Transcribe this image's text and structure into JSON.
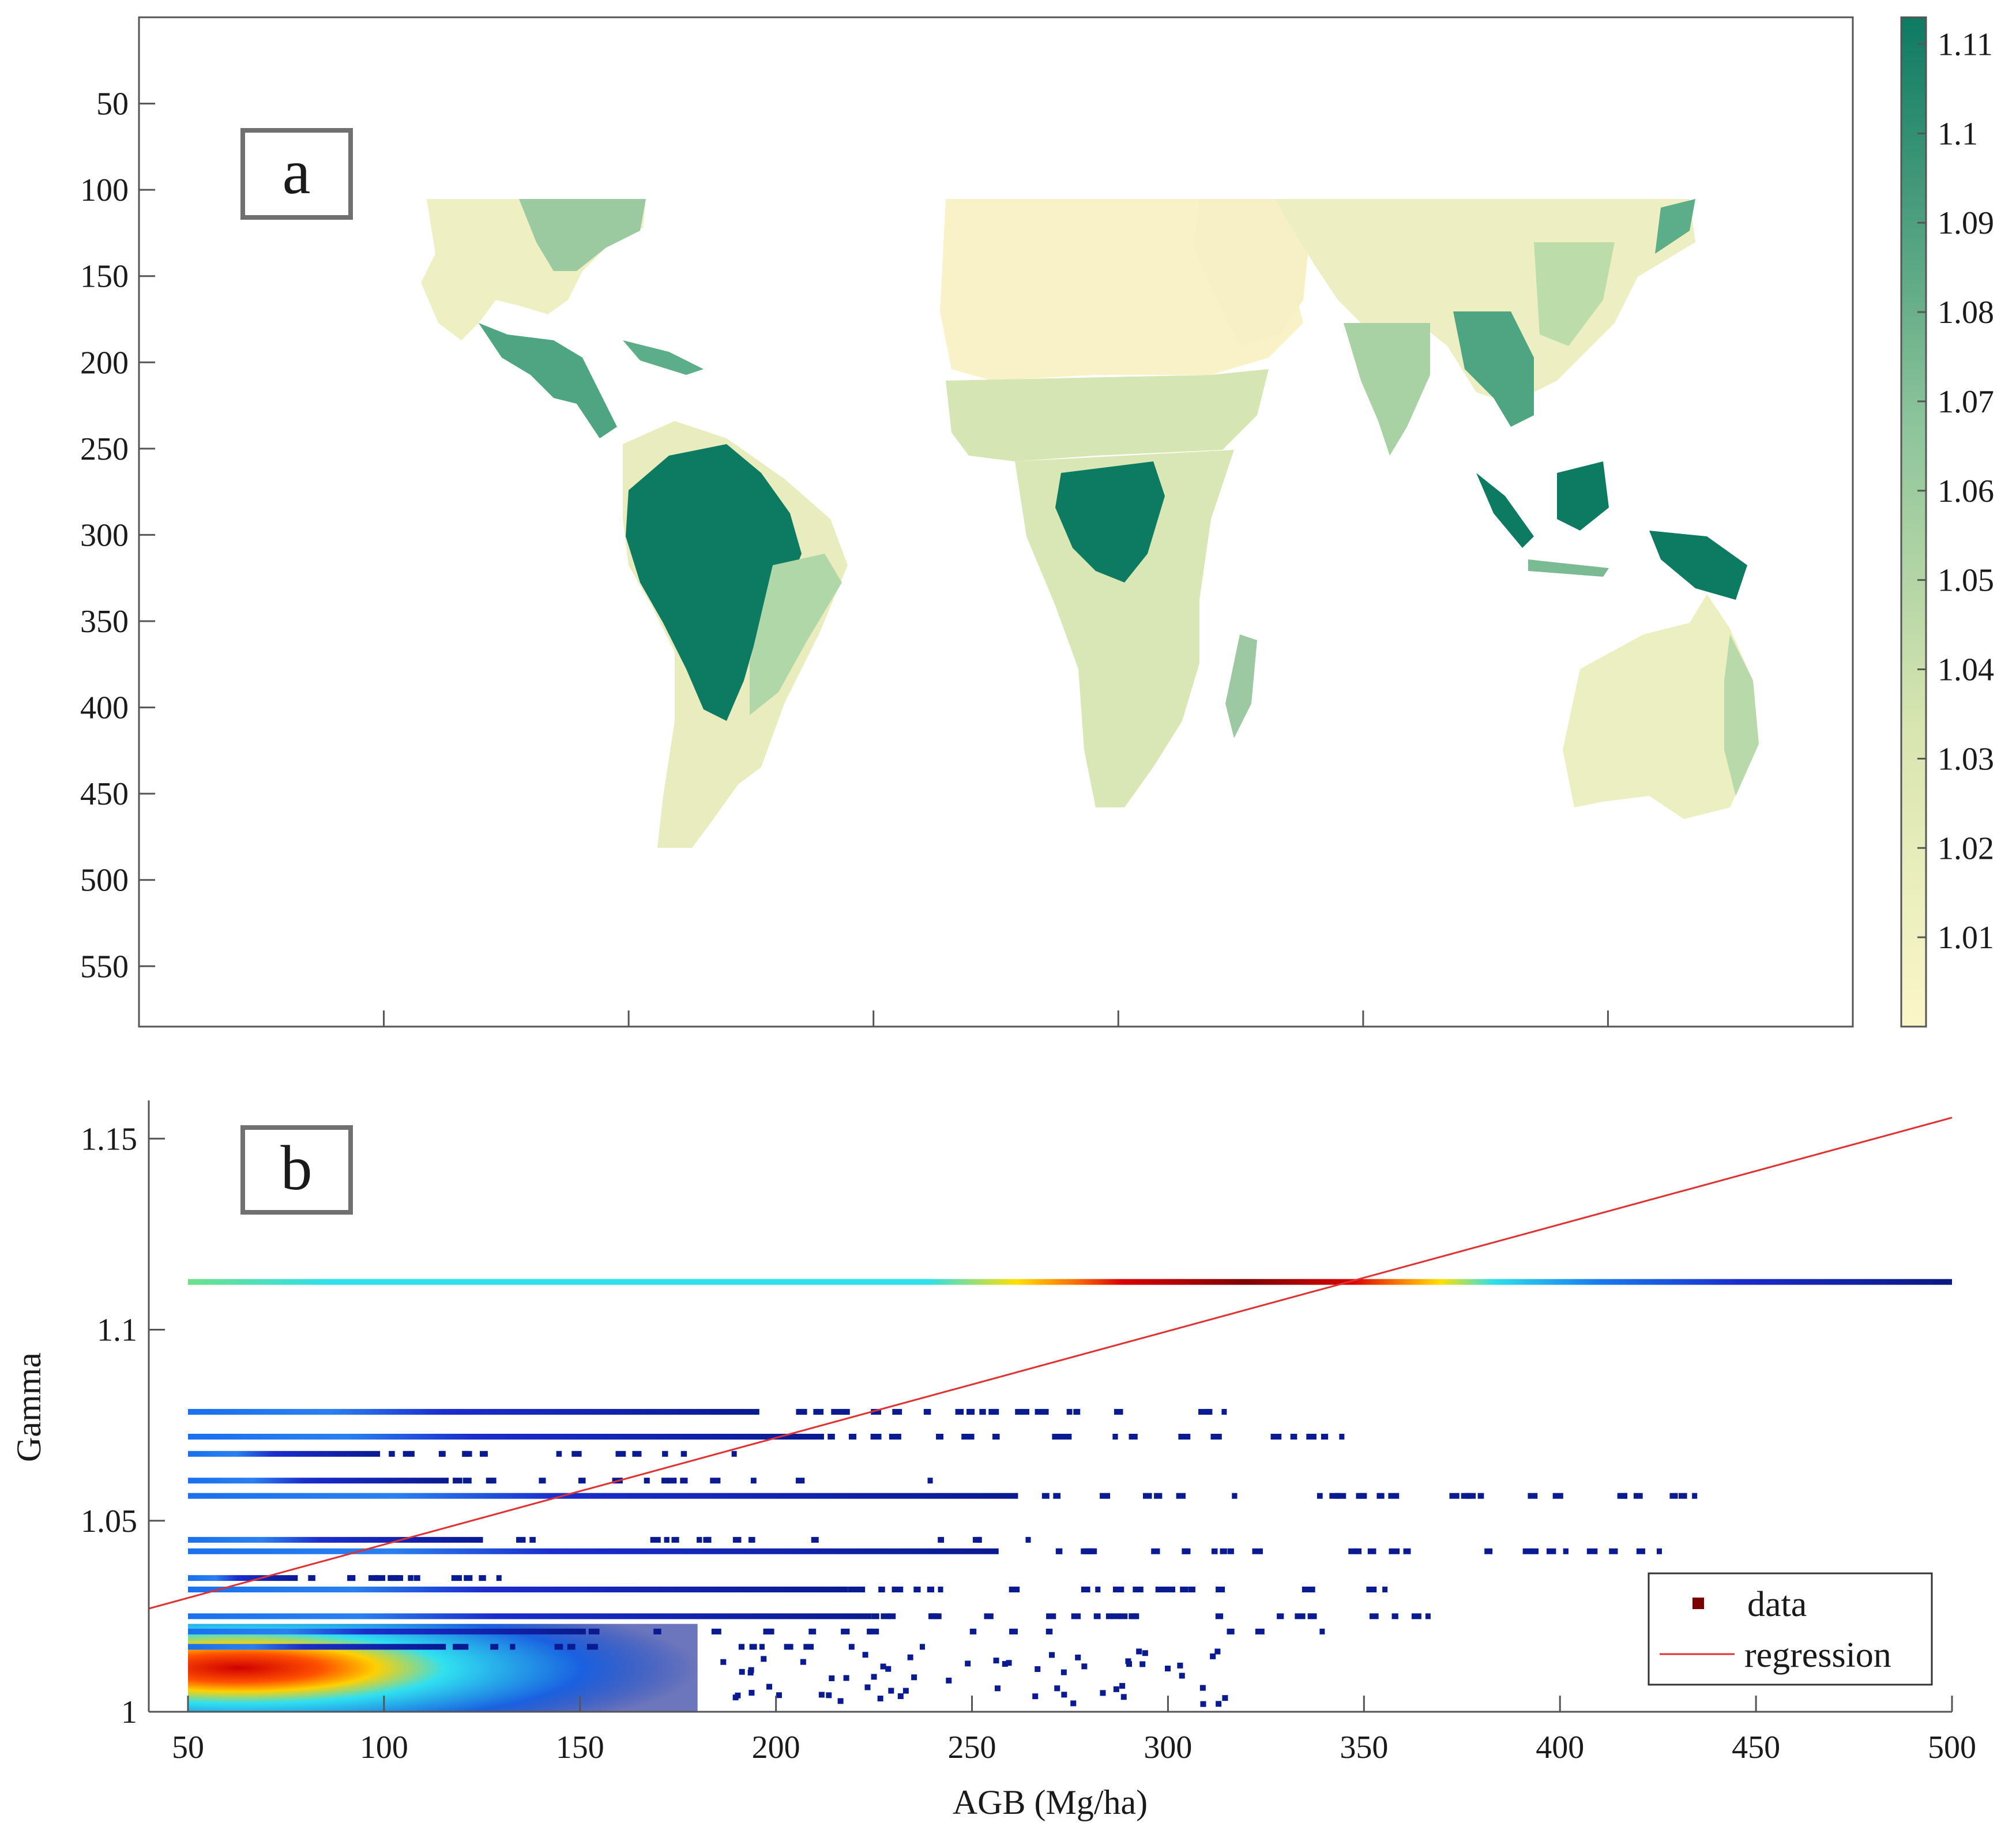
{
  "colors": {
    "map_low": "#fbf6c8",
    "map_high": "#0d7a62",
    "regression": "#e03030",
    "axis": "#555555",
    "marker": "#7a0000"
  },
  "panel_a": {
    "label": "a",
    "y_ticks": [
      "50",
      "100",
      "150",
      "200",
      "250",
      "300",
      "350",
      "400",
      "450",
      "500",
      "550"
    ],
    "x_tick_count": 6,
    "colorbar_ticks": [
      "1.01",
      "1.02",
      "1.03",
      "1.04",
      "1.05",
      "1.06",
      "1.07",
      "1.08",
      "1.09",
      "1.1",
      "1.11"
    ],
    "colorbar_range": [
      1.0,
      1.113
    ]
  },
  "chart_data": {
    "type": "scatter",
    "label": "b",
    "xlabel": "AGB (Mg/ha)",
    "ylabel": "Gamma",
    "xlim": [
      40,
      500
    ],
    "ylim": [
      1.0,
      1.16
    ],
    "x_ticks": [
      "50",
      "100",
      "150",
      "200",
      "250",
      "300",
      "350",
      "400",
      "450",
      "500"
    ],
    "y_ticks": [
      "1",
      "1.05",
      "1.1",
      "1.15"
    ],
    "legend": {
      "data": "data",
      "regression": "regression",
      "position": "bottom-right"
    },
    "regression": {
      "x": [
        40,
        500
      ],
      "y": [
        1.027,
        1.1555
      ]
    },
    "bands": [
      {
        "gamma": 1.1125,
        "x": [
          50,
          500
        ],
        "density": "full"
      },
      {
        "gamma": 1.0785,
        "x": [
          50,
          315
        ],
        "density": "medium"
      },
      {
        "gamma": 1.072,
        "x": [
          50,
          345
        ],
        "density": "medium"
      },
      {
        "gamma": 1.0675,
        "x": [
          50,
          190
        ],
        "density": "low"
      },
      {
        "gamma": 1.0605,
        "x": [
          50,
          240
        ],
        "density": "low"
      },
      {
        "gamma": 1.0565,
        "x": [
          50,
          435
        ],
        "density": "medium"
      },
      {
        "gamma": 1.045,
        "x": [
          50,
          265
        ],
        "density": "low"
      },
      {
        "gamma": 1.042,
        "x": [
          50,
          426
        ],
        "density": "medium"
      },
      {
        "gamma": 1.035,
        "x": [
          50,
          130
        ],
        "density": "low"
      },
      {
        "gamma": 1.032,
        "x": [
          50,
          356
        ],
        "density": "medium"
      },
      {
        "gamma": 1.025,
        "x": [
          50,
          367
        ],
        "density": "medium"
      },
      {
        "gamma": 1.021,
        "x": [
          50,
          340
        ],
        "density": "low"
      },
      {
        "gamma": 1.017,
        "x": [
          50,
          238
        ],
        "density": "low"
      }
    ]
  }
}
